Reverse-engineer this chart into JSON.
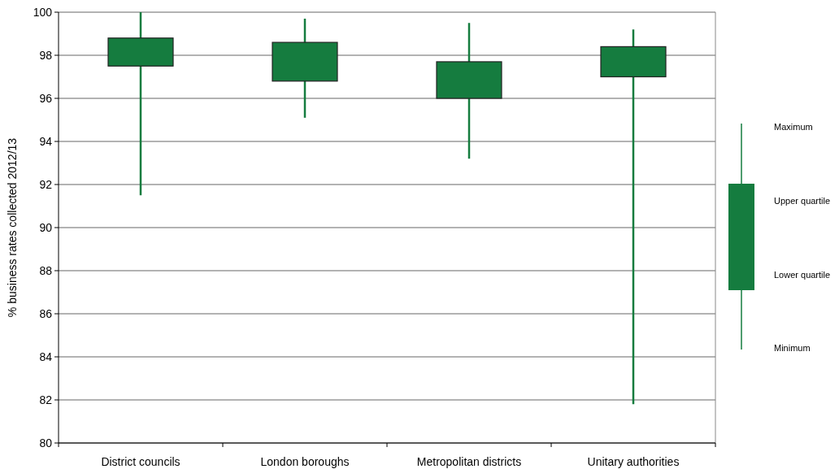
{
  "chart_data": {
    "type": "candlestick",
    "ylabel": "% business rates collected 2012/13",
    "categories": [
      "District councils",
      "London boroughs",
      "Metropolitan districts",
      "Unitary authorities"
    ],
    "ohlc": [
      [
        97.5,
        100,
        91.5,
        98.8
      ],
      [
        96.8,
        99.7,
        95.1,
        98.6
      ],
      [
        96.0,
        99.5,
        93.2,
        97.7
      ],
      [
        97.0,
        99.2,
        81.8,
        98.4
      ]
    ],
    "color": "#157c3f",
    "ylim": [
      80,
      100
    ],
    "yticks": [
      80,
      82,
      84,
      86,
      88,
      90,
      92,
      94,
      96,
      98,
      100
    ],
    "grid": "y",
    "annotations": [
      "Maximum",
      "Upper quartile",
      "Lower quartile",
      "Minimum"
    ]
  }
}
